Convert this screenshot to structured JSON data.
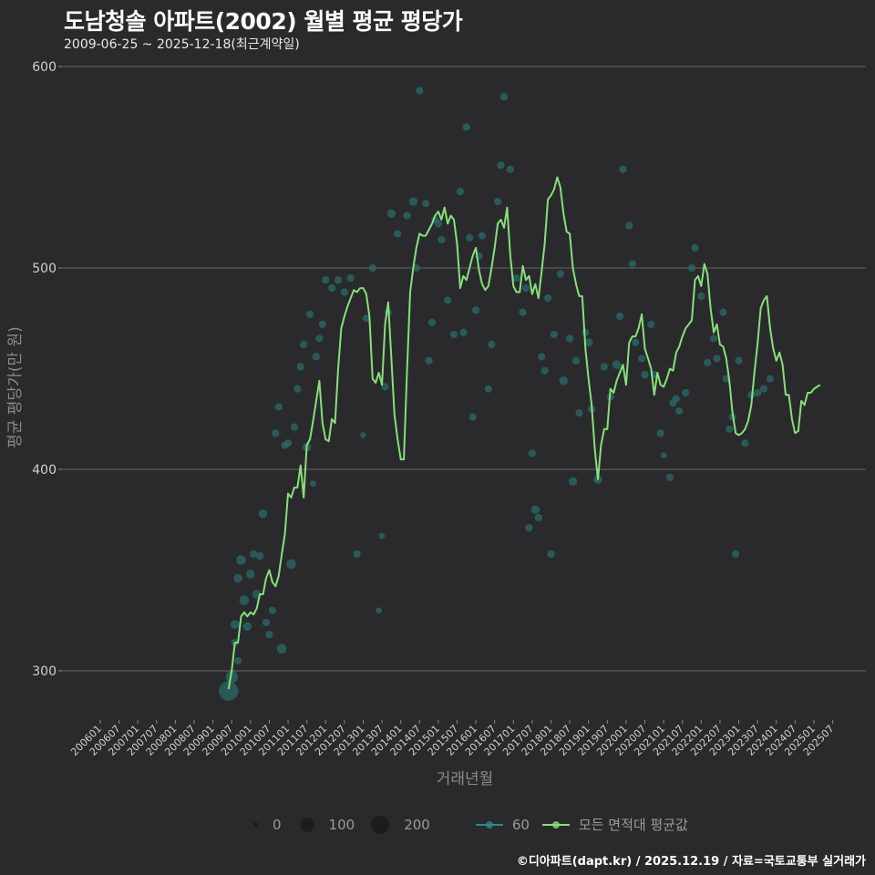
{
  "header": {
    "title": "도남청솔 아파트(2002) 월별 평균 평당가",
    "subtitle": "2009-06-25 ~ 2025-12-18(최근계약일)"
  },
  "footer": {
    "credit": "©디아파트(dapt.kr) / 2025.12.19 / 자료=국토교통부 실거래가"
  },
  "legend": {
    "size_label_0": "0",
    "size_label_1": "100",
    "size_label_2": "200",
    "series_60": "60",
    "series_all": "모든 면적대 평균값"
  },
  "colors": {
    "background": "#2a2a2c",
    "line_all": "#86e07a",
    "points_60": "#2a6b6a",
    "line_60": "#2a8a8a",
    "grid": "#5a5a5a"
  },
  "chart_data": {
    "type": "line",
    "title": "도남청솔 아파트(2002) 월별 평균 평당가",
    "subtitle": "2009-06-25 ~ 2025-12-18(최근계약일)",
    "xlabel": "거래년월",
    "ylabel": "평균 평당가(만 원)",
    "ylim": [
      275,
      600
    ],
    "yticks": [
      300,
      400,
      500,
      600
    ],
    "grid": true,
    "legend_position": "bottom",
    "x_tick_labels": [
      "200601",
      "200607",
      "200701",
      "200707",
      "200801",
      "200807",
      "200901",
      "200907",
      "201001",
      "201007",
      "201101",
      "201107",
      "201201",
      "201207",
      "201301",
      "201307",
      "201401",
      "201407",
      "201501",
      "201507",
      "201601",
      "201607",
      "201701",
      "201707",
      "201801",
      "201807",
      "201901",
      "201907",
      "202001",
      "202007",
      "202101",
      "202107",
      "202201",
      "202207",
      "202301",
      "202307",
      "202401",
      "202407",
      "202501",
      "202507"
    ],
    "series": [
      {
        "name": "모든 면적대 평균값",
        "start": "2009-06",
        "values": [
          291,
          300,
          314,
          314,
          327,
          329,
          327,
          329,
          328,
          331,
          338,
          338,
          346,
          350,
          344,
          342,
          347,
          358,
          368,
          388,
          386,
          391,
          391,
          402,
          386,
          412,
          415,
          424,
          434,
          444,
          423,
          415,
          414,
          425,
          423,
          450,
          470,
          476,
          481,
          485,
          489,
          488,
          490,
          490,
          487,
          476,
          445,
          443,
          448,
          442,
          472,
          483,
          455,
          427,
          415,
          405,
          405,
          448,
          488,
          500,
          510,
          517,
          516,
          516,
          519,
          522,
          526,
          528,
          524,
          530,
          522,
          526,
          524,
          512,
          490,
          496,
          494,
          500,
          506,
          510,
          499,
          492,
          489,
          491,
          500,
          510,
          522,
          524,
          520,
          530,
          506,
          491,
          488,
          488,
          501,
          494,
          496,
          487,
          492,
          485,
          498,
          512,
          534,
          536,
          539,
          545,
          540,
          527,
          518,
          517,
          500,
          492,
          486,
          486,
          460,
          445,
          432,
          410,
          395,
          412,
          420,
          420,
          440,
          438,
          444,
          448,
          452,
          442,
          463,
          466,
          466,
          470,
          477,
          460,
          455,
          450,
          437,
          448,
          442,
          441,
          445,
          450,
          449,
          458,
          461,
          466,
          470,
          472,
          474,
          494,
          496,
          491,
          502,
          497,
          480,
          468,
          472,
          462,
          461,
          455,
          444,
          428,
          418,
          417,
          418,
          420,
          424,
          432,
          448,
          462,
          480,
          484,
          486,
          470,
          460,
          454,
          458,
          452,
          437,
          437,
          425,
          418,
          419,
          434,
          432,
          438,
          438,
          440,
          441,
          442
        ]
      }
    ],
    "scatter_60": [
      {
        "month": "2009-06",
        "value": 290,
        "size": 200
      },
      {
        "month": "2009-07",
        "value": 297,
        "size": 80
      },
      {
        "month": "2009-08",
        "value": 314,
        "size": 30
      },
      {
        "month": "2009-09",
        "value": 305,
        "size": 30
      },
      {
        "month": "2009-08",
        "value": 323,
        "size": 40
      },
      {
        "month": "2009-09",
        "value": 346,
        "size": 40
      },
      {
        "month": "2009-10",
        "value": 355,
        "size": 50
      },
      {
        "month": "2009-11",
        "value": 335,
        "size": 50
      },
      {
        "month": "2009-12",
        "value": 322,
        "size": 40
      },
      {
        "month": "2010-01",
        "value": 348,
        "size": 40
      },
      {
        "month": "2010-02",
        "value": 358,
        "size": 30
      },
      {
        "month": "2010-03",
        "value": 338,
        "size": 40
      },
      {
        "month": "2010-04",
        "value": 357,
        "size": 30
      },
      {
        "month": "2010-05",
        "value": 378,
        "size": 40
      },
      {
        "month": "2010-06",
        "value": 324,
        "size": 30
      },
      {
        "month": "2010-07",
        "value": 318,
        "size": 30
      },
      {
        "month": "2010-08",
        "value": 330,
        "size": 30
      },
      {
        "month": "2010-09",
        "value": 418,
        "size": 30
      },
      {
        "month": "2010-10",
        "value": 431,
        "size": 30
      },
      {
        "month": "2010-11",
        "value": 311,
        "size": 50
      },
      {
        "month": "2010-12",
        "value": 412,
        "size": 30
      },
      {
        "month": "2011-01",
        "value": 413,
        "size": 30
      },
      {
        "month": "2011-02",
        "value": 353,
        "size": 50
      },
      {
        "month": "2011-03",
        "value": 421,
        "size": 30
      },
      {
        "month": "2011-04",
        "value": 440,
        "size": 30
      },
      {
        "month": "2011-05",
        "value": 451,
        "size": 30
      },
      {
        "month": "2011-06",
        "value": 462,
        "size": 30
      },
      {
        "month": "2011-07",
        "value": 411,
        "size": 40
      },
      {
        "month": "2011-08",
        "value": 477,
        "size": 30
      },
      {
        "month": "2011-09",
        "value": 393,
        "size": 20
      },
      {
        "month": "2011-10",
        "value": 456,
        "size": 30
      },
      {
        "month": "2011-11",
        "value": 465,
        "size": 30
      },
      {
        "month": "2011-12",
        "value": 472,
        "size": 30
      },
      {
        "month": "2012-01",
        "value": 494,
        "size": 30
      },
      {
        "month": "2012-03",
        "value": 490,
        "size": 30
      },
      {
        "month": "2012-05",
        "value": 494,
        "size": 30
      },
      {
        "month": "2012-07",
        "value": 488,
        "size": 30
      },
      {
        "month": "2012-09",
        "value": 495,
        "size": 30
      },
      {
        "month": "2012-11",
        "value": 358,
        "size": 30
      },
      {
        "month": "2013-01",
        "value": 417,
        "size": 20
      },
      {
        "month": "2013-02",
        "value": 475,
        "size": 30
      },
      {
        "month": "2013-04",
        "value": 500,
        "size": 30
      },
      {
        "month": "2013-06",
        "value": 330,
        "size": 20
      },
      {
        "month": "2013-07",
        "value": 367,
        "size": 20
      },
      {
        "month": "2013-08",
        "value": 441,
        "size": 30
      },
      {
        "month": "2013-09",
        "value": 478,
        "size": 30
      },
      {
        "month": "2013-10",
        "value": 527,
        "size": 40
      },
      {
        "month": "2013-12",
        "value": 517,
        "size": 30
      },
      {
        "month": "2014-03",
        "value": 526,
        "size": 30
      },
      {
        "month": "2014-05",
        "value": 533,
        "size": 40
      },
      {
        "month": "2014-06",
        "value": 500,
        "size": 30
      },
      {
        "month": "2014-07",
        "value": 588,
        "size": 30
      },
      {
        "month": "2014-09",
        "value": 532,
        "size": 30
      },
      {
        "month": "2014-10",
        "value": 454,
        "size": 30
      },
      {
        "month": "2014-11",
        "value": 473,
        "size": 30
      },
      {
        "month": "2014-12",
        "value": 524,
        "size": 30
      },
      {
        "month": "2015-01",
        "value": 522,
        "size": 30
      },
      {
        "month": "2015-02",
        "value": 514,
        "size": 30
      },
      {
        "month": "2015-04",
        "value": 484,
        "size": 30
      },
      {
        "month": "2015-06",
        "value": 467,
        "size": 30
      },
      {
        "month": "2015-08",
        "value": 538,
        "size": 30
      },
      {
        "month": "2015-09",
        "value": 468,
        "size": 30
      },
      {
        "month": "2015-10",
        "value": 570,
        "size": 30
      },
      {
        "month": "2015-11",
        "value": 515,
        "size": 30
      },
      {
        "month": "2015-12",
        "value": 426,
        "size": 30
      },
      {
        "month": "2016-01",
        "value": 479,
        "size": 30
      },
      {
        "month": "2016-02",
        "value": 506,
        "size": 30
      },
      {
        "month": "2016-03",
        "value": 516,
        "size": 30
      },
      {
        "month": "2016-05",
        "value": 440,
        "size": 30
      },
      {
        "month": "2016-06",
        "value": 462,
        "size": 30
      },
      {
        "month": "2016-08",
        "value": 533,
        "size": 30
      },
      {
        "month": "2016-09",
        "value": 551,
        "size": 30
      },
      {
        "month": "2016-10",
        "value": 585,
        "size": 30
      },
      {
        "month": "2016-12",
        "value": 549,
        "size": 30
      },
      {
        "month": "2017-02",
        "value": 495,
        "size": 30
      },
      {
        "month": "2017-04",
        "value": 478,
        "size": 30
      },
      {
        "month": "2017-05",
        "value": 490,
        "size": 30
      },
      {
        "month": "2017-06",
        "value": 371,
        "size": 30
      },
      {
        "month": "2017-07",
        "value": 408,
        "size": 30
      },
      {
        "month": "2017-08",
        "value": 380,
        "size": 40
      },
      {
        "month": "2017-09",
        "value": 376,
        "size": 30
      },
      {
        "month": "2017-10",
        "value": 456,
        "size": 30
      },
      {
        "month": "2017-11",
        "value": 449,
        "size": 30
      },
      {
        "month": "2017-12",
        "value": 485,
        "size": 30
      },
      {
        "month": "2018-01",
        "value": 358,
        "size": 30
      },
      {
        "month": "2018-02",
        "value": 467,
        "size": 30
      },
      {
        "month": "2018-04",
        "value": 497,
        "size": 30
      },
      {
        "month": "2018-05",
        "value": 444,
        "size": 40
      },
      {
        "month": "2018-07",
        "value": 465,
        "size": 30
      },
      {
        "month": "2018-08",
        "value": 394,
        "size": 40
      },
      {
        "month": "2018-09",
        "value": 454,
        "size": 30
      },
      {
        "month": "2018-10",
        "value": 428,
        "size": 30
      },
      {
        "month": "2018-12",
        "value": 468,
        "size": 30
      },
      {
        "month": "2019-01",
        "value": 463,
        "size": 40
      },
      {
        "month": "2019-02",
        "value": 430,
        "size": 30
      },
      {
        "month": "2019-04",
        "value": 395,
        "size": 40
      },
      {
        "month": "2019-06",
        "value": 451,
        "size": 30
      },
      {
        "month": "2019-08",
        "value": 436,
        "size": 30
      },
      {
        "month": "2019-10",
        "value": 452,
        "size": 40
      },
      {
        "month": "2019-11",
        "value": 476,
        "size": 30
      },
      {
        "month": "2019-12",
        "value": 549,
        "size": 30
      },
      {
        "month": "2020-02",
        "value": 521,
        "size": 30
      },
      {
        "month": "2020-03",
        "value": 502,
        "size": 30
      },
      {
        "month": "2020-04",
        "value": 463,
        "size": 30
      },
      {
        "month": "2020-06",
        "value": 455,
        "size": 30
      },
      {
        "month": "2020-07",
        "value": 447,
        "size": 30
      },
      {
        "month": "2020-09",
        "value": 472,
        "size": 30
      },
      {
        "month": "2020-10",
        "value": 447,
        "size": 30
      },
      {
        "month": "2020-12",
        "value": 418,
        "size": 30
      },
      {
        "month": "2021-01",
        "value": 407,
        "size": 20
      },
      {
        "month": "2021-03",
        "value": 396,
        "size": 30
      },
      {
        "month": "2021-04",
        "value": 433,
        "size": 30
      },
      {
        "month": "2021-05",
        "value": 435,
        "size": 30
      },
      {
        "month": "2021-06",
        "value": 429,
        "size": 30
      },
      {
        "month": "2021-08",
        "value": 438,
        "size": 30
      },
      {
        "month": "2021-10",
        "value": 500,
        "size": 30
      },
      {
        "month": "2021-11",
        "value": 510,
        "size": 30
      },
      {
        "month": "2022-01",
        "value": 486,
        "size": 30
      },
      {
        "month": "2022-03",
        "value": 453,
        "size": 30
      },
      {
        "month": "2022-05",
        "value": 465,
        "size": 30
      },
      {
        "month": "2022-06",
        "value": 455,
        "size": 30
      },
      {
        "month": "2022-08",
        "value": 478,
        "size": 30
      },
      {
        "month": "2022-09",
        "value": 445,
        "size": 30
      },
      {
        "month": "2022-10",
        "value": 420,
        "size": 30
      },
      {
        "month": "2022-11",
        "value": 426,
        "size": 30
      },
      {
        "month": "2022-12",
        "value": 358,
        "size": 30
      },
      {
        "month": "2023-01",
        "value": 454,
        "size": 30
      },
      {
        "month": "2023-03",
        "value": 413,
        "size": 30
      },
      {
        "month": "2023-05",
        "value": 437,
        "size": 30
      },
      {
        "month": "2023-07",
        "value": 438,
        "size": 30
      },
      {
        "month": "2023-09",
        "value": 440,
        "size": 30
      },
      {
        "month": "2023-11",
        "value": 445,
        "size": 30
      }
    ]
  }
}
